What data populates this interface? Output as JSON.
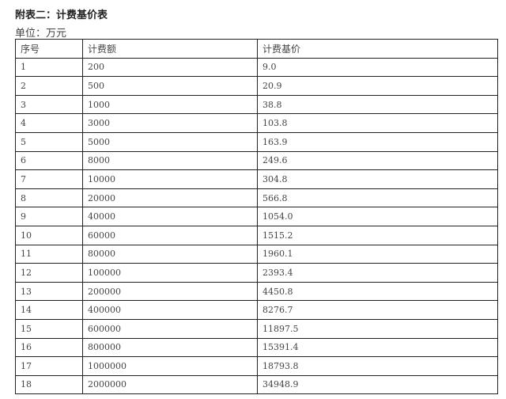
{
  "title": "附表二：计费基价表",
  "unit": "单位：万元",
  "table": {
    "headers": [
      "序号",
      "计费额",
      "计费基价"
    ],
    "rows": [
      [
        "1",
        "200",
        "9.0"
      ],
      [
        "2",
        "500",
        "20.9"
      ],
      [
        "3",
        "1000",
        "38.8"
      ],
      [
        "4",
        "3000",
        "103.8"
      ],
      [
        "5",
        "5000",
        "163.9"
      ],
      [
        "6",
        "8000",
        "249.6"
      ],
      [
        "7",
        "10000",
        "304.8"
      ],
      [
        "8",
        "20000",
        "566.8"
      ],
      [
        "9",
        "40000",
        "1054.0"
      ],
      [
        "10",
        "60000",
        "1515.2"
      ],
      [
        "11",
        "80000",
        "1960.1"
      ],
      [
        "12",
        "100000",
        "2393.4"
      ],
      [
        "13",
        "200000",
        "4450.8"
      ],
      [
        "14",
        "400000",
        "8276.7"
      ],
      [
        "15",
        "600000",
        "11897.5"
      ],
      [
        "16",
        "800000",
        "15391.4"
      ],
      [
        "17",
        "1000000",
        "18793.8"
      ],
      [
        "18",
        "2000000",
        "34948.9"
      ]
    ]
  }
}
